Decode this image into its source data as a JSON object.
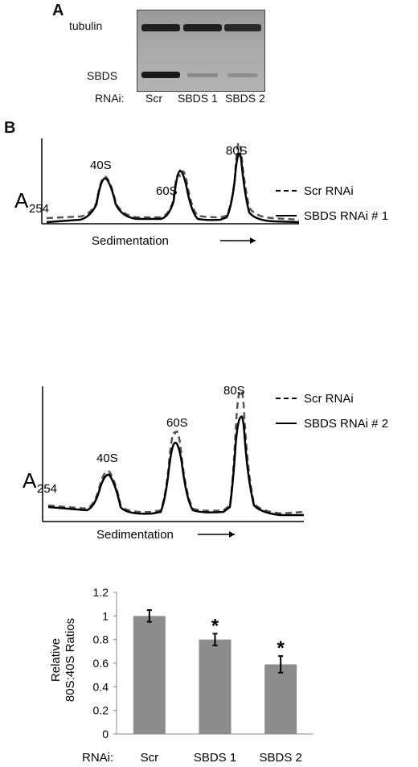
{
  "panel_a": {
    "letter": "A",
    "rows": [
      "tubulin",
      "SBDS"
    ],
    "rnai_label": "RNAi:",
    "lanes": [
      "Scr",
      "SBDS 1",
      "SBDS 2"
    ]
  },
  "panel_b": {
    "letter": "B",
    "profiles": [
      {
        "ylabel_main": "A",
        "ylabel_sub": "254",
        "xlabel": "Sedimentation",
        "peaks": [
          "40S",
          "60S",
          "80S"
        ],
        "legend": [
          {
            "style": "dashed",
            "label": "Scr RNAi"
          },
          {
            "style": "solid",
            "label": "SBDS RNAi # 1"
          }
        ]
      },
      {
        "ylabel_main": "A",
        "ylabel_sub": "254",
        "xlabel": "Sedimentation",
        "peaks": [
          "40S",
          "60S",
          "80S"
        ],
        "legend": [
          {
            "style": "dashed",
            "label": "Scr RNAi"
          },
          {
            "style": "solid",
            "label": "SBDS RNAi # 2"
          }
        ]
      }
    ]
  },
  "chart_data": {
    "type": "bar",
    "categories": [
      "Scr",
      "SBDS 1",
      "SBDS 2"
    ],
    "values": [
      1.0,
      0.8,
      0.59
    ],
    "errors": [
      0.05,
      0.05,
      0.07
    ],
    "significance": [
      "",
      "*",
      "*"
    ],
    "ylabel": "Relative 80S:40S Ratios",
    "ylabel_lines": [
      "Relative",
      "80S:40S Ratios"
    ],
    "xlabel_prefix": "RNAi:",
    "yticks": [
      "0",
      "0.2",
      "0.4",
      "0.6",
      "0.8",
      "1",
      "1.2"
    ],
    "ylim": [
      0,
      1.2
    ],
    "bar_color": "#8c8c8c",
    "grid": false
  }
}
